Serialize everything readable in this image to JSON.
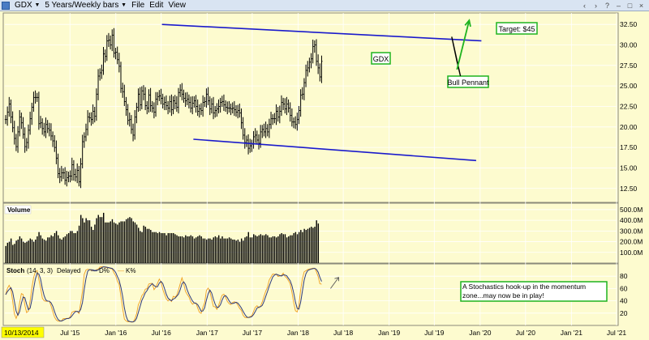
{
  "window": {
    "symbol": "GDX",
    "timeframe": "5 Years/Weekly bars",
    "menu": [
      "File",
      "Edit",
      "View"
    ],
    "controls": [
      "‹",
      "›",
      "?",
      "–",
      "□",
      "×"
    ]
  },
  "colors": {
    "background": "#fdfbcf",
    "channel": "#1a1acc",
    "arrow": "#1fb31f",
    "annotation_border": "#1fb31f",
    "price_bars": "#000000",
    "d_line": "#2d3a7a",
    "k_line": "#f0a020"
  },
  "chart_data": [
    {
      "type": "ohlc",
      "panel": "price",
      "symbol_label": "GDX",
      "x_start": "2014-10-13",
      "weekly_close": [
        20.9,
        21.8,
        22.8,
        21.2,
        19.9,
        18.6,
        17.6,
        19.4,
        21.2,
        20.5,
        19.1,
        17.6,
        18.1,
        19.6,
        21.0,
        22.4,
        23.6,
        23.6,
        23.6,
        20.4,
        20.5,
        19.8,
        19.4,
        20.3,
        19.8,
        19.6,
        18.9,
        18.3,
        17.5,
        16.2,
        14.3,
        13.9,
        14.4,
        14.4,
        13.5,
        13.8,
        14.0,
        14.0,
        15.4,
        14.2,
        13.9,
        14.7,
        13.3,
        15.5,
        18.2,
        18.8,
        19.7,
        21.2,
        21.1,
        20.9,
        21.9,
        21.3,
        24.0,
        26.2,
        26.6,
        26.9,
        28.9,
        28.6,
        30.5,
        30.6,
        30.0,
        31.2,
        29.0,
        29.1,
        28.2,
        27.4,
        24.7,
        24.3,
        23.1,
        22.1,
        20.8,
        20.9,
        19.7,
        19.0,
        21.2,
        22.4,
        24.0,
        22.7,
        24.4,
        24.0,
        22.6,
        22.3,
        23.9,
        22.6,
        22.3,
        21.8,
        23.4,
        23.7,
        23.8,
        23.5,
        22.8,
        23.0,
        22.6,
        22.3,
        23.1,
        22.1,
        23.2,
        22.9,
        22.4,
        24.2,
        24.5,
        24.0,
        23.5,
        23.2,
        23.4,
        23.0,
        22.3,
        22.9,
        23.2,
        22.5,
        21.9,
        22.2,
        22.0,
        23.0,
        23.1,
        24.0,
        23.2,
        22.2,
        22.8,
        21.7,
        22.0,
        22.2,
        22.5,
        23.0,
        23.1,
        22.7,
        22.4,
        22.3,
        22.3,
        22.2,
        22.3,
        22.1,
        21.8,
        22.0,
        21.7,
        20.5,
        19.0,
        18.1,
        18.4,
        17.4,
        17.7,
        17.9,
        18.8,
        19.0,
        18.4,
        18.0,
        19.4,
        19.7,
        19.4,
        19.8,
        19.4,
        20.3,
        21.0,
        21.0,
        21.0,
        21.9,
        21.2,
        21.9,
        23.0,
        22.8,
        22.2,
        22.8,
        22.3,
        21.4,
        20.6,
        20.6,
        20.3,
        20.9,
        22.0,
        23.9,
        24.0,
        25.4,
        26.9,
        27.2,
        27.9,
        28.3,
        29.8,
        30.0,
        28.0,
        27.2,
        26.1,
        28.0
      ],
      "channel_upper": [
        [
          "2016-07-04",
          32.5
        ],
        [
          "2020-01-06",
          30.5
        ]
      ],
      "channel_lower": [
        [
          "2016-11-07",
          18.5
        ],
        [
          "2019-12-16",
          15.9
        ]
      ],
      "pennant": [
        [
          "2019-09-09",
          31.0
        ],
        [
          "2019-10-14",
          26.2
        ],
        [
          "2019-09-30",
          28.0
        ]
      ],
      "arrow": [
        [
          "2019-09-30",
          27.0
        ],
        [
          "2019-11-18",
          33.0
        ]
      ],
      "annotations": {
        "target": "Target: $45",
        "pattern": "Bull Pennant"
      },
      "y_ticks": [
        "32.50",
        "30.00",
        "27.50",
        "25.00",
        "22.50",
        "20.00",
        "17.50",
        "15.00",
        "12.50"
      ],
      "ylim": [
        10.8,
        33.9
      ]
    },
    {
      "type": "bar",
      "panel": "volume",
      "title": "Volume",
      "unit": "M",
      "weekly_values": [
        160,
        190,
        200,
        230,
        170,
        180,
        210,
        220,
        250,
        230,
        200,
        190,
        200,
        210,
        230,
        220,
        200,
        220,
        250,
        290,
        260,
        230,
        220,
        210,
        240,
        240,
        260,
        250,
        280,
        300,
        260,
        230,
        220,
        240,
        250,
        270,
        280,
        300,
        300,
        280,
        280,
        300,
        350,
        450,
        420,
        380,
        420,
        400,
        400,
        340,
        310,
        360,
        420,
        450,
        430,
        430,
        470,
        380,
        380,
        380,
        390,
        410,
        380,
        370,
        360,
        380,
        390,
        390,
        390,
        410,
        420,
        430,
        420,
        390,
        380,
        360,
        330,
        300,
        290,
        350,
        340,
        320,
        320,
        310,
        290,
        290,
        290,
        280,
        290,
        280,
        280,
        280,
        260,
        280,
        280,
        280,
        280,
        270,
        260,
        250,
        250,
        250,
        240,
        260,
        250,
        250,
        260,
        250,
        230,
        240,
        250,
        260,
        250,
        230,
        230,
        220,
        230,
        230,
        220,
        240,
        250,
        240,
        260,
        230,
        250,
        230,
        230,
        230,
        240,
        230,
        220,
        220,
        210,
        220,
        200,
        230,
        210,
        240,
        250,
        290,
        240,
        240,
        270,
        260,
        250,
        260,
        270,
        260,
        260,
        270,
        260,
        240,
        240,
        250,
        250,
        240,
        250,
        270,
        280,
        270,
        270,
        240,
        250,
        260,
        260,
        280,
        290,
        270,
        290,
        310,
        290,
        320,
        310,
        320,
        330,
        340,
        330,
        340,
        400,
        370
      ],
      "y_ticks": [
        "500.0M",
        "400.0M",
        "300.0M",
        "200.0M",
        "100.0M"
      ],
      "ylim": [
        0,
        560
      ]
    },
    {
      "type": "line",
      "panel": "stochastics",
      "title": "Stoch",
      "params": "(14, 3, 3)",
      "subtitle": "Delayed",
      "series": [
        {
          "name": "D%",
          "color": "#2d3a7a"
        },
        {
          "name": "K%",
          "color": "#f0a020"
        }
      ],
      "annotation": "A Stochastics hook-up in the momentum zone...may now be in play!",
      "y_ticks": [
        "80",
        "60",
        "40",
        "20"
      ],
      "ylim": [
        0,
        100
      ]
    }
  ],
  "x_axis": {
    "ticks": [
      {
        "date": "2014-10-13",
        "label": "10/13/2014",
        "highlight": true
      },
      {
        "date": "2015-07-01",
        "label": "Jul '15"
      },
      {
        "date": "2016-01-01",
        "label": "Jan '16"
      },
      {
        "date": "2016-07-01",
        "label": "Jul '16"
      },
      {
        "date": "2017-01-01",
        "label": "Jan '17"
      },
      {
        "date": "2017-07-01",
        "label": "Jul '17"
      },
      {
        "date": "2018-01-01",
        "label": "Jan '18"
      },
      {
        "date": "2018-07-01",
        "label": "Jul '18"
      },
      {
        "date": "2019-01-01",
        "label": "Jan '19"
      },
      {
        "date": "2019-07-01",
        "label": "Jul '19"
      },
      {
        "date": "2020-01-01",
        "label": "Jan '20"
      },
      {
        "date": "2020-07-01",
        "label": "Jul '20"
      },
      {
        "date": "2021-01-01",
        "label": "Jan '21"
      },
      {
        "date": "2021-07-01",
        "label": "Jul '21"
      }
    ]
  }
}
